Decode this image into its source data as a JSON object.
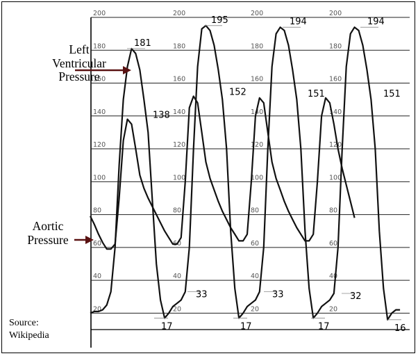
{
  "chart_data": {
    "type": "line",
    "title": "",
    "xlabel": "",
    "ylabel": "",
    "ylim": [
      10,
      200
    ],
    "yticks": [
      20,
      40,
      60,
      80,
      100,
      120,
      140,
      160,
      180,
      200
    ],
    "grid": true,
    "series": [
      {
        "name": "Left Ventricular Pressure",
        "values": [
          20,
          21,
          21,
          22,
          25,
          33,
          60,
          110,
          150,
          170,
          181,
          178,
          168,
          150,
          130,
          90,
          50,
          28,
          17,
          20,
          24,
          26,
          28,
          33,
          60,
          120,
          170,
          193,
          195,
          192,
          183,
          168,
          150,
          120,
          70,
          35,
          17,
          20,
          24,
          26,
          28,
          33,
          60,
          120,
          170,
          190,
          194,
          192,
          183,
          168,
          150,
          120,
          70,
          35,
          17,
          20,
          24,
          26,
          28,
          32,
          60,
          120,
          170,
          190,
          194,
          192,
          183,
          168,
          150,
          120,
          70,
          35,
          16,
          20,
          22,
          22
        ]
      },
      {
        "name": "Aortic Pressure",
        "values": [
          79,
          74,
          68,
          63,
          59,
          59,
          62,
          90,
          125,
          138,
          135,
          120,
          104,
          96,
          90,
          85,
          80,
          75,
          70,
          66,
          62,
          62,
          66,
          100,
          145,
          152,
          148,
          130,
          112,
          102,
          95,
          88,
          82,
          77,
          72,
          68,
          64,
          64,
          68,
          100,
          140,
          151,
          148,
          130,
          112,
          102,
          95,
          88,
          82,
          77,
          72,
          68,
          64,
          64,
          68,
          100,
          140,
          151,
          148,
          135,
          120,
          108,
          98,
          88,
          78
        ]
      }
    ],
    "annotations": {
      "lv_peaks": [
        "181",
        "195",
        "194",
        "194"
      ],
      "ao_peaks": [
        "138",
        "152",
        "151",
        "151"
      ],
      "ed_points": [
        "33",
        "33",
        "32"
      ],
      "min_points": [
        "17",
        "17",
        "17",
        "16"
      ]
    },
    "side_labels": {
      "lv": [
        "Left",
        "Ventricular",
        "Pressure"
      ],
      "ao": [
        "Aortic",
        "Pressure"
      ]
    },
    "source": [
      "Source:",
      "Wikipedia"
    ],
    "colors": {
      "line": "#111111",
      "grid": "#222222",
      "arrow": "#5a1212"
    }
  }
}
